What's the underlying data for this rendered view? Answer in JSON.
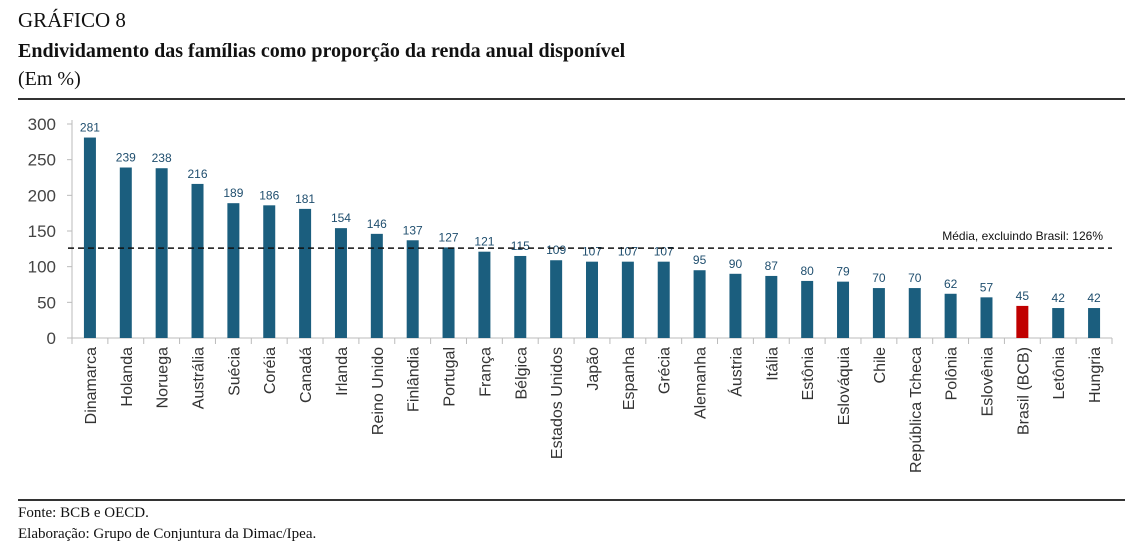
{
  "header": {
    "kicker": "GRÁFICO 8",
    "title": "Endividamento das famílias como proporção da renda anual disponível",
    "unit": "(Em %)"
  },
  "footer": {
    "source": "Fonte: BCB e  OECD.",
    "credit": "Elaboração: Grupo de Conjuntura da Dimac/Ipea."
  },
  "colors": {
    "bar": "#1b5e7e",
    "highlight": "#c00000",
    "label": "#1f4e6e",
    "axis": "#bbbbbb"
  },
  "chart_data": {
    "type": "bar",
    "title": "Endividamento das famílias como proporção da renda anual disponível",
    "xlabel": "",
    "ylabel": "(Em %)",
    "ylim": [
      0,
      300
    ],
    "yticks": [
      0,
      50,
      100,
      150,
      200,
      250,
      300
    ],
    "categories": [
      "Dinamarca",
      "Holanda",
      "Noruega",
      "Austrália",
      "Suécia",
      "Coréia",
      "Canadá",
      "Irlanda",
      "Reino Unido",
      "Finlândia",
      "Portugal",
      "França",
      "Bélgica",
      "Estados Unidos",
      "Japão",
      "Espanha",
      "Grécia",
      "Alemanha",
      "Áustria",
      "Itália",
      "Estônia",
      "Eslováquia",
      "Chile",
      "República Tcheca",
      "Polônia",
      "Eslovênia",
      "Brasil (BCB)",
      "Letônia",
      "Hungria"
    ],
    "values": [
      281,
      239,
      238,
      216,
      189,
      186,
      181,
      154,
      146,
      137,
      127,
      121,
      115,
      109,
      107,
      107,
      107,
      95,
      90,
      87,
      80,
      79,
      70,
      70,
      62,
      57,
      45,
      42,
      42
    ],
    "highlight": "Brasil (BCB)",
    "reference_line": {
      "value": 126,
      "label": "Média, excluindo Brasil: 126%",
      "style": "dashed"
    },
    "grid": false,
    "legend": "none"
  }
}
